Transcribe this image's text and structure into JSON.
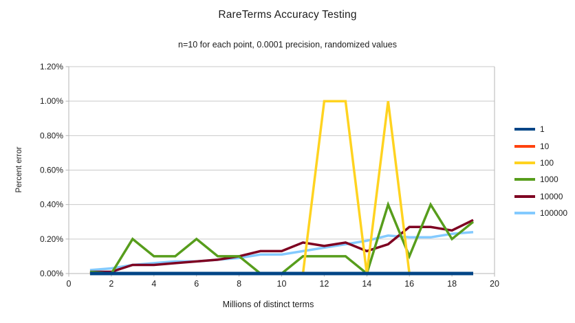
{
  "chart_data": {
    "type": "line",
    "title": "RareTerms Accuracy Testing",
    "subtitle": "n=10 for each point, 0.0001 precision, randomized values",
    "xlabel": "Millions of distinct terms",
    "ylabel": "Percent error",
    "xlim": [
      0,
      20
    ],
    "ylim_percent": [
      0,
      1.2
    ],
    "x_ticks": [
      "0",
      "2",
      "4",
      "6",
      "8",
      "10",
      "12",
      "14",
      "16",
      "18",
      "20"
    ],
    "y_ticks": [
      "0.00%",
      "0.20%",
      "0.40%",
      "0.60%",
      "0.80%",
      "1.00%",
      "1.20%"
    ],
    "grid": "horizontal",
    "legend_position": "right",
    "x": [
      1,
      2,
      3,
      4,
      5,
      6,
      7,
      8,
      9,
      10,
      11,
      12,
      13,
      14,
      15,
      16,
      17,
      18,
      19
    ],
    "series": [
      {
        "name": "1",
        "color": "#004586",
        "values": [
          0,
          0,
          0,
          0,
          0,
          0,
          0,
          0,
          0,
          0,
          0,
          0,
          0,
          0,
          0,
          0,
          0,
          0,
          0
        ]
      },
      {
        "name": "10",
        "color": "#ff420e",
        "values": [
          0,
          0,
          0,
          0,
          0,
          0,
          0,
          0,
          0,
          0,
          0,
          0,
          0,
          0,
          0,
          0,
          0,
          0,
          0
        ]
      },
      {
        "name": "100",
        "color": "#ffd320",
        "values": [
          0,
          0,
          0,
          0,
          0,
          0,
          0,
          0,
          0,
          0,
          0,
          1.0,
          1.0,
          0,
          1.0,
          0,
          0,
          0,
          0
        ]
      },
      {
        "name": "1000",
        "color": "#579d1c",
        "values": [
          0.01,
          0,
          0.2,
          0.1,
          0.1,
          0.2,
          0.1,
          0.1,
          0,
          0,
          0.1,
          0.1,
          0.1,
          0,
          0.4,
          0.1,
          0.4,
          0.2,
          0.3
        ]
      },
      {
        "name": "10000",
        "color": "#7e0021",
        "values": [
          0.01,
          0.01,
          0.05,
          0.05,
          0.06,
          0.07,
          0.08,
          0.1,
          0.13,
          0.13,
          0.18,
          0.16,
          0.18,
          0.13,
          0.17,
          0.27,
          0.27,
          0.25,
          0.31
        ]
      },
      {
        "name": "100000",
        "color": "#83caff",
        "values": [
          0.02,
          0.03,
          0.05,
          0.06,
          0.07,
          0.07,
          0.08,
          0.09,
          0.11,
          0.11,
          0.13,
          0.15,
          0.17,
          0.19,
          0.22,
          0.21,
          0.21,
          0.23,
          0.24
        ]
      }
    ]
  }
}
